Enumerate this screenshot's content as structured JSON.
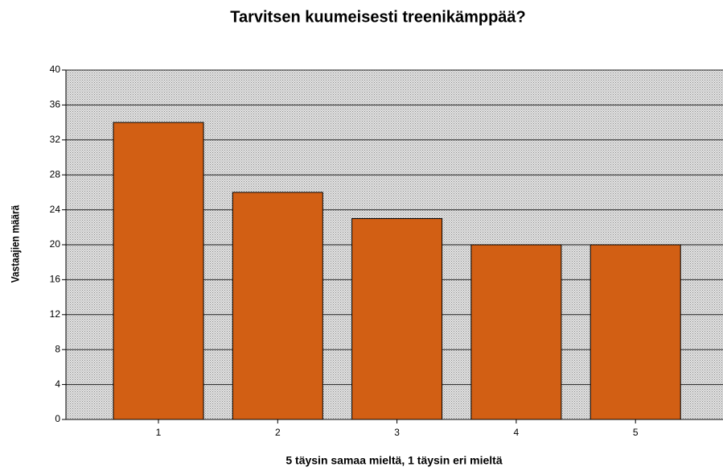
{
  "chart_data": {
    "type": "bar",
    "title": "Tarvitsen kuumeisesti treenikämppää?",
    "x_label": "5 täysin samaa mieltä, 1 täysin eri mieltä",
    "y_label": "Vastaajien määrä",
    "categories": [
      "1",
      "2",
      "3",
      "4",
      "5"
    ],
    "values": [
      34,
      26,
      23,
      20,
      20
    ],
    "color": "#d25f14",
    "ylim": [
      0,
      40
    ],
    "yticks": [
      0,
      4,
      8,
      12,
      16,
      20,
      24,
      28,
      32,
      36,
      40
    ],
    "grid": true
  }
}
